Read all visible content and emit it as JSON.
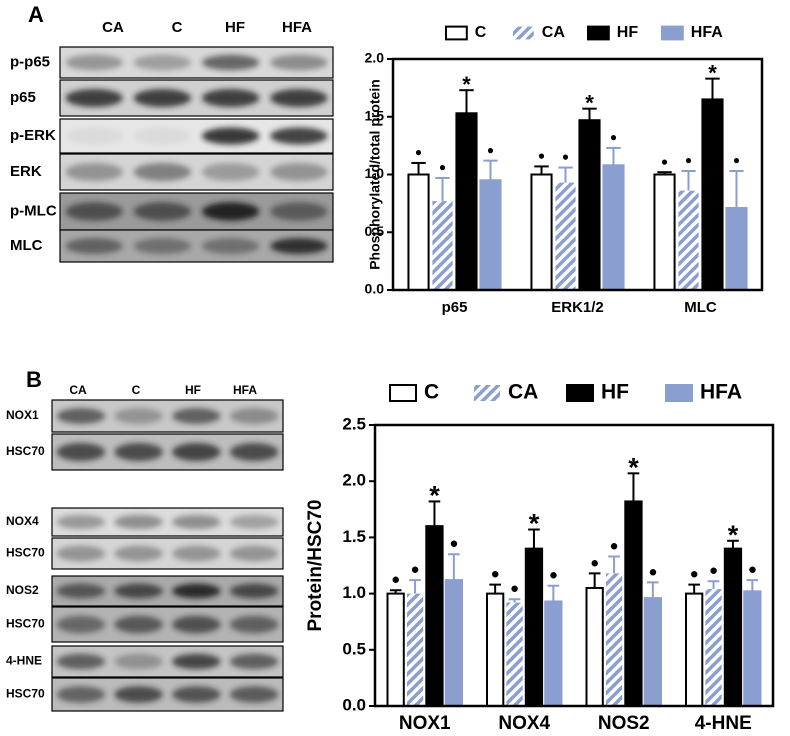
{
  "chart_data": [
    {
      "type": "bar",
      "panel": "A",
      "y_label": "Phosphorylated/total protein",
      "categories": [
        "p65",
        "ERK1/2",
        "MLC"
      ],
      "ylim": [
        0,
        2
      ],
      "yticks": [
        {
          "value": 0,
          "label": "0.0"
        },
        {
          "value": 0.5,
          "label": "0.5"
        },
        {
          "value": 1,
          "label": "1.0"
        },
        {
          "value": 1.5,
          "label": "1.5"
        },
        {
          "value": 2,
          "label": "2.0"
        }
      ],
      "legend": "top",
      "series": [
        {
          "name": "C",
          "color": "#ffffff",
          "values": [
            1.0,
            1.0,
            1.0
          ],
          "errors": [
            0.1,
            0.07,
            0.02
          ],
          "annotations": [
            "●",
            "●",
            "●"
          ]
        },
        {
          "name": "CA",
          "color": "#8a9ed0",
          "hatch": true,
          "values": [
            0.77,
            0.93,
            0.86
          ],
          "errors": [
            0.2,
            0.13,
            0.17
          ],
          "annotations": [
            "●",
            "●",
            "●"
          ]
        },
        {
          "name": "HF",
          "color": "#000000",
          "values": [
            1.53,
            1.47,
            1.65
          ],
          "errors": [
            0.2,
            0.1,
            0.18
          ],
          "annotations": [
            "*",
            "*",
            "*"
          ]
        },
        {
          "name": "HFA",
          "color": "#8a9ed0",
          "values": [
            0.95,
            1.08,
            0.71
          ],
          "errors": [
            0.17,
            0.15,
            0.32
          ],
          "annotations": [
            "●",
            "●",
            "●"
          ]
        }
      ]
    },
    {
      "type": "bar",
      "panel": "B",
      "y_label": "Protein/HSC70",
      "categories": [
        "NOX1",
        "NOX4",
        "NOS2",
        "4-HNE"
      ],
      "ylim": [
        0,
        2.5
      ],
      "yticks": [
        {
          "value": 0,
          "label": "0.0"
        },
        {
          "value": 0.5,
          "label": "0.5"
        },
        {
          "value": 1,
          "label": "1.0"
        },
        {
          "value": 1.5,
          "label": "1.5"
        },
        {
          "value": 2,
          "label": "2.0"
        },
        {
          "value": 2.5,
          "label": "2.5"
        }
      ],
      "legend": "top",
      "series": [
        {
          "name": "C",
          "color": "#ffffff",
          "values": [
            1.0,
            1.0,
            1.05,
            1.0
          ],
          "errors": [
            0.03,
            0.08,
            0.13,
            0.08
          ],
          "annotations": [
            "●",
            "●",
            "●",
            "●"
          ]
        },
        {
          "name": "CA",
          "color": "#8a9ed0",
          "hatch": true,
          "values": [
            1.0,
            0.92,
            1.18,
            1.04
          ],
          "errors": [
            0.12,
            0.03,
            0.15,
            0.07
          ],
          "annotations": [
            "●",
            "●",
            "●",
            "●"
          ]
        },
        {
          "name": "HF",
          "color": "#000000",
          "values": [
            1.6,
            1.4,
            1.82,
            1.4
          ],
          "errors": [
            0.22,
            0.17,
            0.25,
            0.07
          ],
          "annotations": [
            "*",
            "*",
            "*",
            "*"
          ]
        },
        {
          "name": "HFA",
          "color": "#8a9ed0",
          "values": [
            1.12,
            0.93,
            0.96,
            1.02
          ],
          "errors": [
            0.23,
            0.14,
            0.14,
            0.1
          ],
          "annotations": [
            "●",
            "●",
            "●",
            "●"
          ]
        }
      ]
    }
  ],
  "blots": [
    {
      "lanes": [
        "CA",
        "C",
        "HF",
        "HFA"
      ],
      "rows": [
        "p-p65",
        "p65",
        "p-ERK",
        "ERK",
        "p-MLC",
        "MLC"
      ]
    },
    {
      "lanes": [
        "CA",
        "C",
        "HF",
        "HFA"
      ],
      "rows": [
        "NOX1",
        "HSC70",
        "NOX4",
        "HSC70",
        "NOS2",
        "HSC70",
        "4-HNE",
        "HSC70"
      ]
    }
  ]
}
